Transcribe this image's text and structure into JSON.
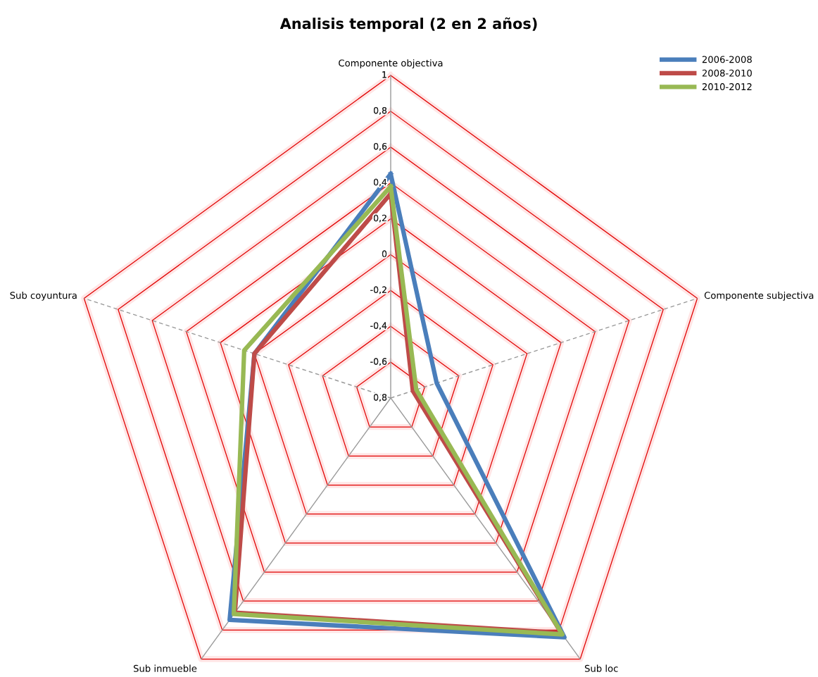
{
  "chart_data": {
    "type": "radar",
    "title": "Analisis temporal (2 en 2 años)",
    "categories": [
      "Componente objectiva",
      "Componente subjectiva",
      "Sub loc",
      "Sub inmueble",
      "Sub coyuntura"
    ],
    "series": [
      {
        "name": "2006-2008",
        "color": "#4a7ebb",
        "values": [
          0.45,
          -0.53,
          0.85,
          0.73,
          0.0
        ]
      },
      {
        "name": "2008-2010",
        "color": "#be4b48",
        "values": [
          0.34,
          -0.67,
          0.82,
          0.68,
          0.0
        ]
      },
      {
        "name": "2010-2012",
        "color": "#98b954",
        "values": [
          0.38,
          -0.65,
          0.83,
          0.69,
          0.06
        ]
      }
    ],
    "ylim": [
      -0.8,
      1
    ],
    "yticks": [
      {
        "value": -0.8,
        "label": "0,8"
      },
      {
        "value": -0.6,
        "label": "-0,6"
      },
      {
        "value": -0.4,
        "label": "-0,4"
      },
      {
        "value": -0.2,
        "label": "-0,2"
      },
      0,
      {
        "value": 0.2,
        "label": "0,2"
      },
      {
        "value": 0.4,
        "label": "0,4"
      },
      {
        "value": 0.6,
        "label": "0,6"
      },
      {
        "value": 0.8,
        "label": "0,8"
      },
      1
    ],
    "grid": true,
    "legend": "top right",
    "marker": "none",
    "line_style": "solid"
  }
}
